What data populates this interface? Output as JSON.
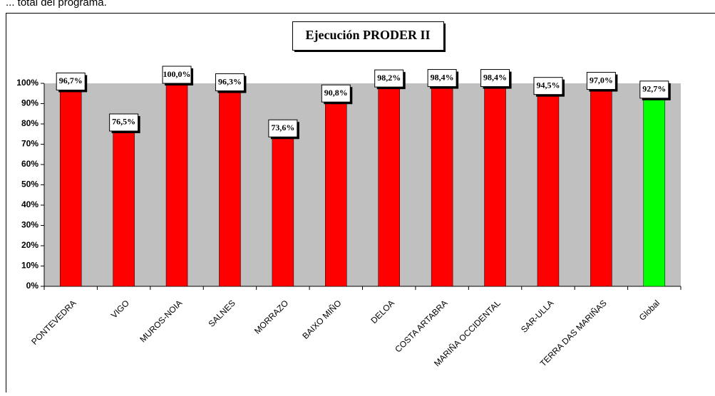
{
  "chart_data": {
    "type": "bar",
    "header_text": "... total del programa.",
    "title": "Ejecución PRODER II",
    "categories": [
      "PONTEVEDRA",
      "VIGO",
      "MUROS-NOIA",
      "SALNES",
      "MORRAZO",
      "BAIXO MIÑO",
      "DELOA",
      "COSTA ARTABRA",
      "MARIÑA OCCIDENTAL",
      "SAR-ULLA",
      "TERRA DAS MARIÑAS",
      "Global"
    ],
    "values": [
      96.7,
      76.5,
      100.0,
      96.3,
      73.6,
      90.8,
      98.2,
      98.4,
      98.4,
      94.5,
      97.0,
      92.7
    ],
    "value_labels": [
      "96,7%",
      "76,5%",
      "100,0%",
      "96,3%",
      "73,6%",
      "90,8%",
      "98,2%",
      "98,4%",
      "98,4%",
      "94,5%",
      "97,0%",
      "92,7%"
    ],
    "colors": [
      "#ff0000",
      "#ff0000",
      "#ff0000",
      "#ff0000",
      "#ff0000",
      "#ff0000",
      "#ff0000",
      "#ff0000",
      "#ff0000",
      "#ff0000",
      "#ff0000",
      "#00ff00"
    ],
    "ylim": [
      0,
      100
    ],
    "yticks": [
      {
        "value": 0,
        "label": "0%"
      },
      {
        "value": 10,
        "label": "10%"
      },
      {
        "value": 20,
        "label": "20%"
      },
      {
        "value": 30,
        "label": "30%"
      },
      {
        "value": 40,
        "label": "40%"
      },
      {
        "value": 50,
        "label": "50%"
      },
      {
        "value": 60,
        "label": "60%"
      },
      {
        "value": 70,
        "label": "70%"
      },
      {
        "value": 80,
        "label": "80%"
      },
      {
        "value": 90,
        "label": "90%"
      },
      {
        "value": 100,
        "label": "100%"
      }
    ],
    "plot_background": "#c0c0c0",
    "grid": false
  }
}
